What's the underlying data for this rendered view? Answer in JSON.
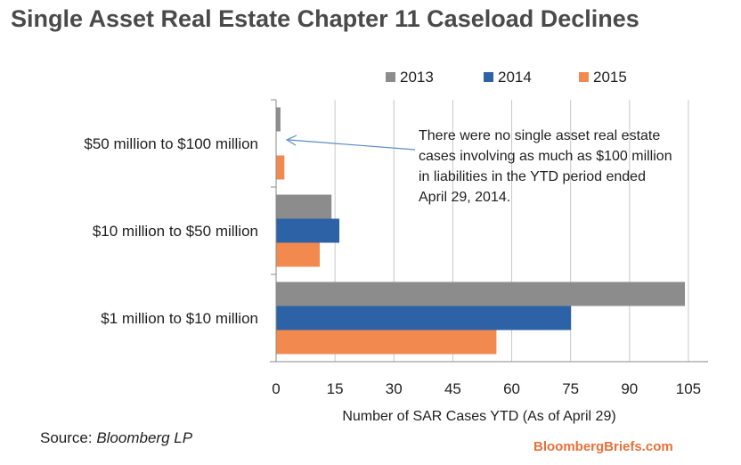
{
  "page_title": "Single Asset Real Estate Chapter 11 Caseload Declines",
  "chart_data": {
    "type": "bar",
    "orientation": "horizontal",
    "title": "Single Asset Real Estate Chapter 11 Caseload Declines",
    "categories": [
      "$50 million to $100 million",
      "$10 million to $50 million",
      "$1 million to $10 million"
    ],
    "series": [
      {
        "name": "2013",
        "color": "#8c8c8c",
        "values": [
          1,
          14,
          104
        ]
      },
      {
        "name": "2014",
        "color": "#2e62a6",
        "values": [
          0,
          16,
          75
        ]
      },
      {
        "name": "2015",
        "color": "#f28a4f",
        "values": [
          2,
          11,
          56
        ]
      }
    ],
    "xlabel": "Number of SAR Cases YTD (As of April 29)",
    "ylabel": "",
    "xlim": [
      0,
      110
    ],
    "xticks": [
      0,
      15,
      30,
      45,
      60,
      75,
      90,
      105
    ],
    "grid": true,
    "legend_position": "top-right",
    "annotation": {
      "lines": [
        "There were no single asset real estate",
        "cases involving as much as $100 million",
        "in liabilities in the YTD period ended",
        "April 29, 2014."
      ],
      "arrow_target_category": "$50 million to $100 million"
    }
  },
  "footer": {
    "source_prefix": "Source: ",
    "source_name": "Bloomberg LP",
    "brand": "BloombergBriefs.com"
  }
}
